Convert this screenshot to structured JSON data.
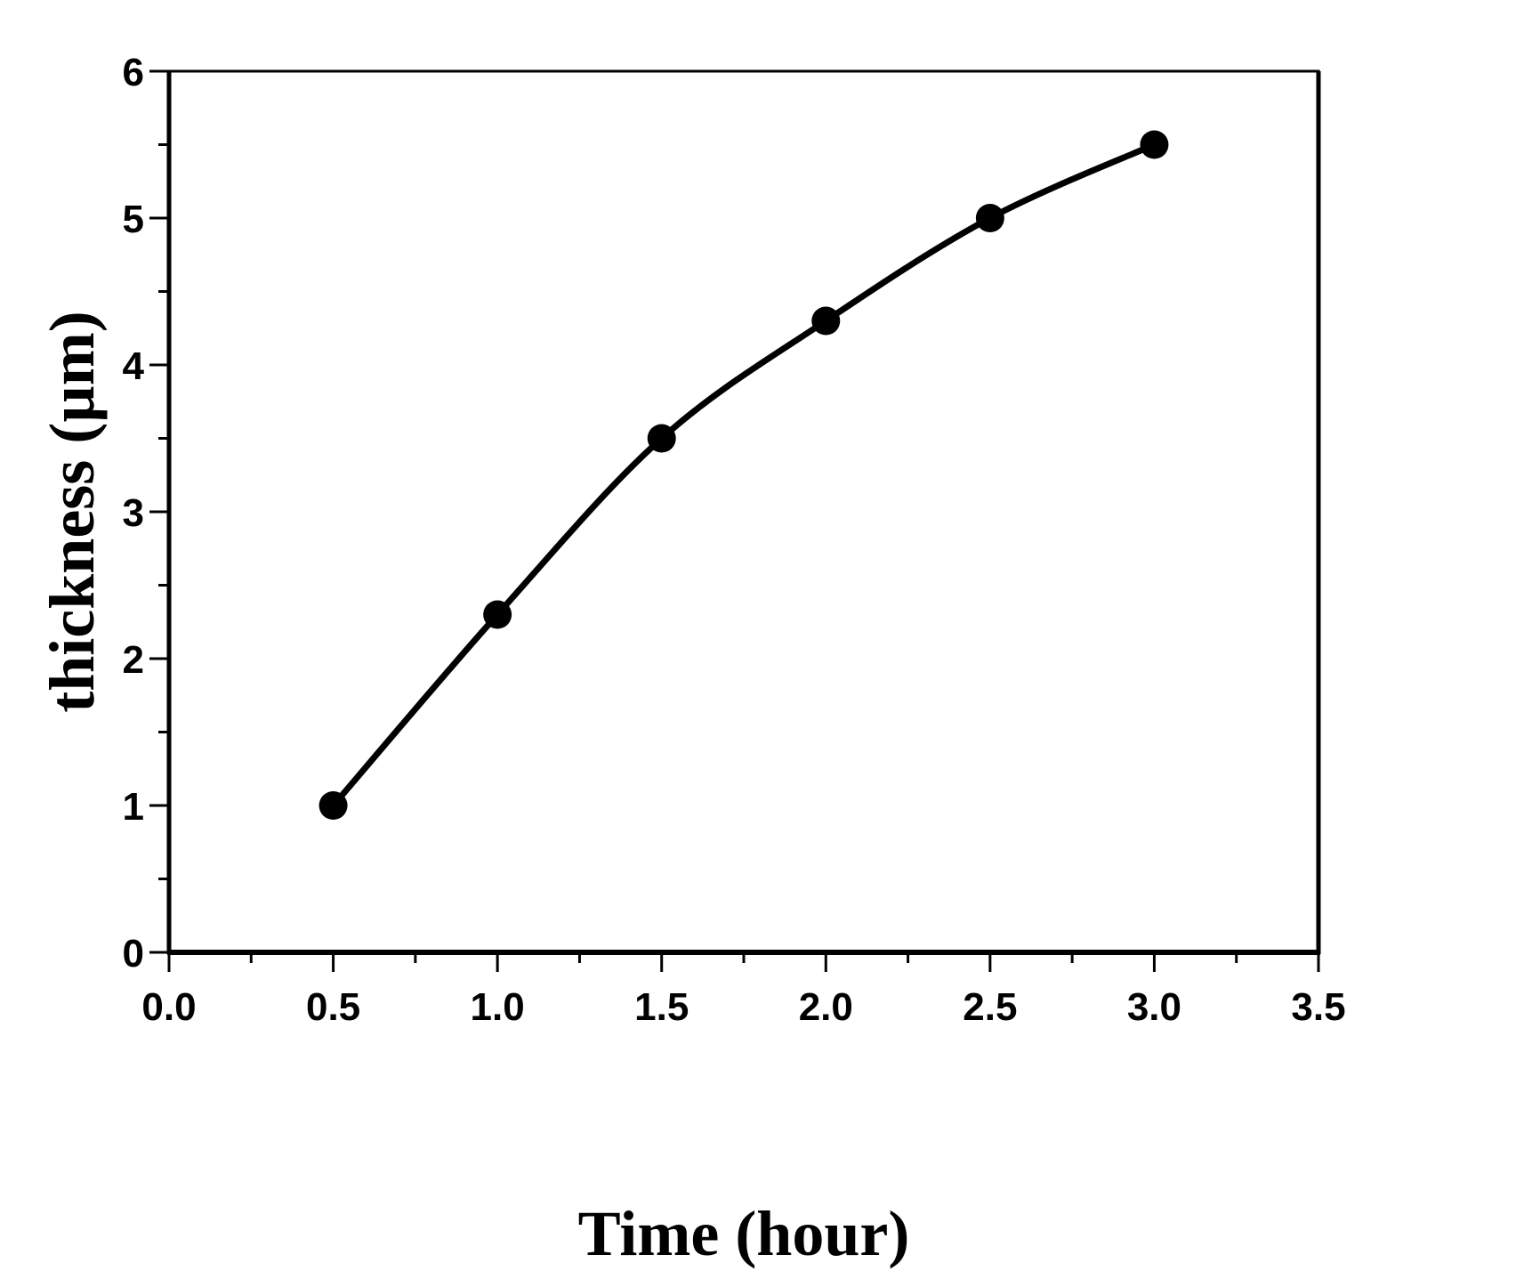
{
  "chart_data": {
    "type": "line",
    "title": "",
    "xlabel": "Time (hour)",
    "ylabel": "thickness (µm)",
    "x": [
      0.5,
      1.0,
      1.5,
      2.0,
      2.5,
      3.0
    ],
    "series": [
      {
        "name": "thickness",
        "values": [
          1.0,
          2.3,
          3.5,
          4.3,
          5.0,
          5.5
        ],
        "color": "#000000",
        "marker": "circle"
      }
    ],
    "xlim": [
      0.0,
      3.5
    ],
    "ylim": [
      0,
      6
    ],
    "xticks": [
      "0.0",
      "0.5",
      "1.0",
      "1.5",
      "2.0",
      "2.5",
      "3.0",
      "3.5"
    ],
    "yticks": [
      "0",
      "1",
      "2",
      "3",
      "4",
      "5",
      "6"
    ],
    "grid": false,
    "legend": null
  }
}
